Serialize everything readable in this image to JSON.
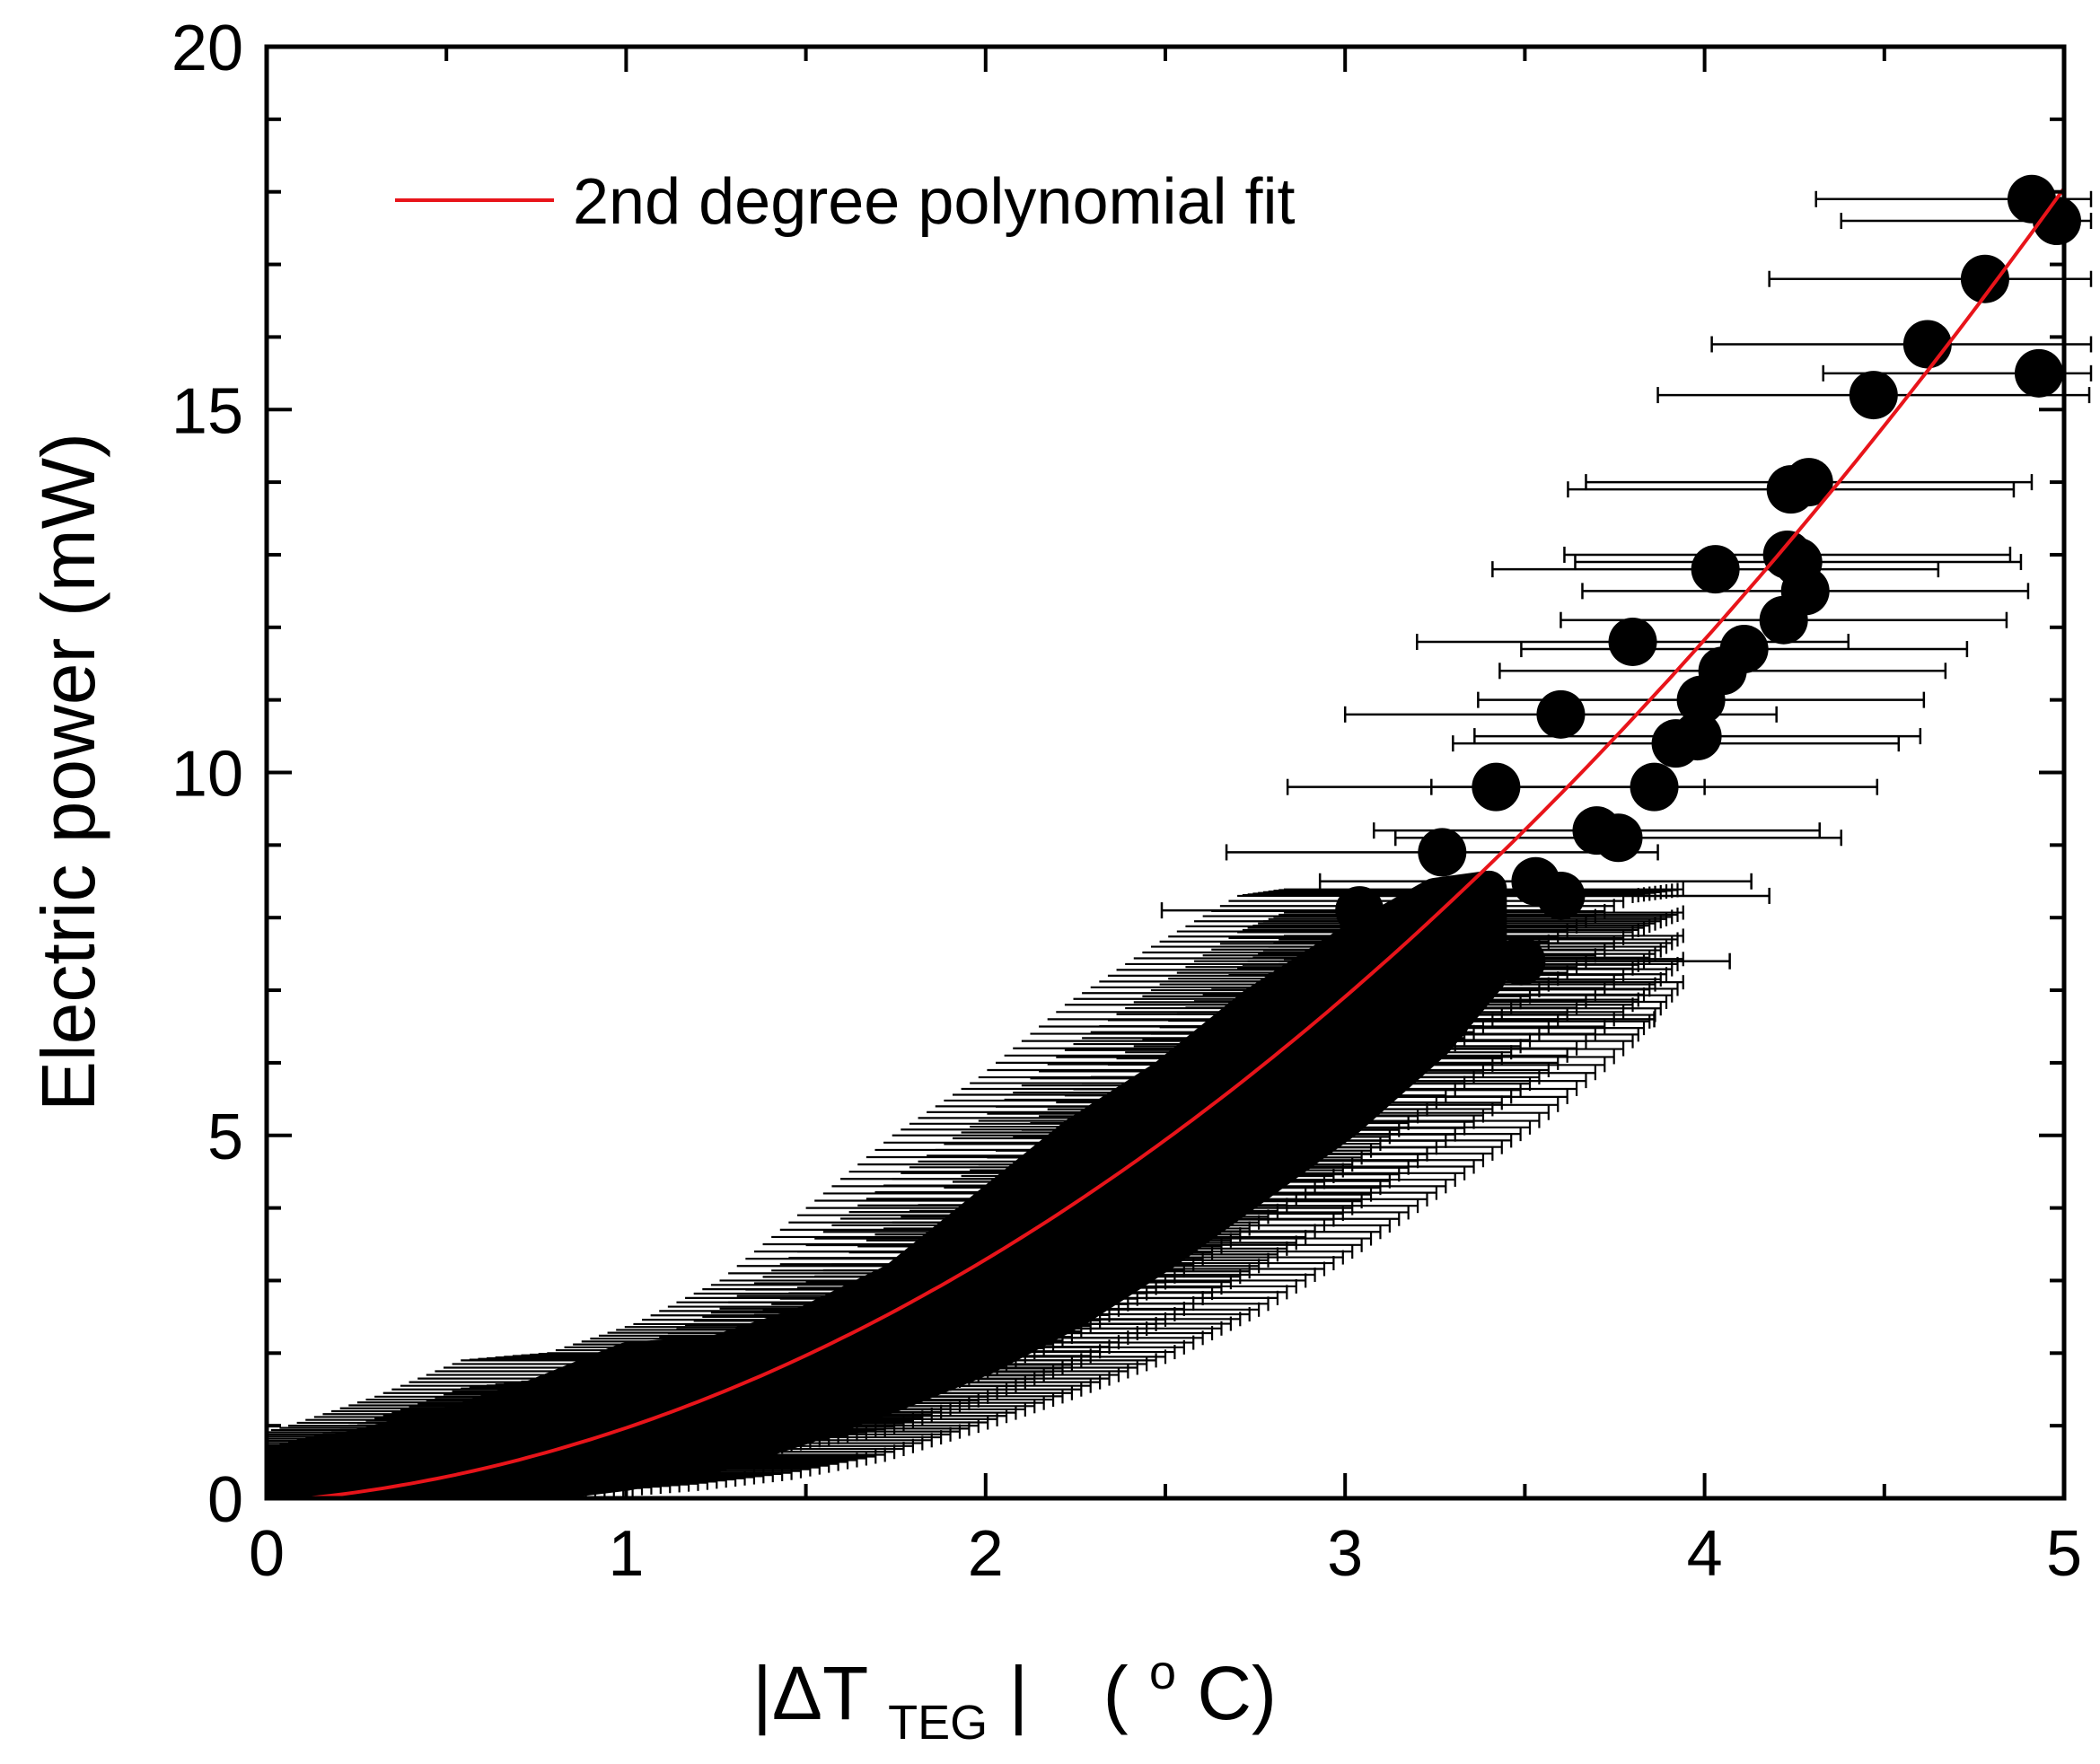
{
  "chart_data": {
    "type": "scatter",
    "title": "",
    "xlabel": {
      "parts": [
        "|ΔT",
        "TEG",
        "|",
        "(",
        "o",
        "C)"
      ]
    },
    "ylabel": "Electric power (mW)",
    "xlim": [
      0,
      5
    ],
    "ylim": [
      0,
      20
    ],
    "x_ticks": [
      0,
      1,
      2,
      3,
      4,
      5
    ],
    "y_ticks": [
      0,
      5,
      10,
      15,
      20
    ],
    "x_tick_labels": [
      "0",
      "1",
      "2",
      "3",
      "4",
      "5"
    ],
    "y_tick_labels": [
      "0",
      "5",
      "10",
      "15",
      "20"
    ],
    "grid": false,
    "legend": {
      "position": "top-left",
      "entries": [
        {
          "label": "2nd degree polynomial fit",
          "color": "#e8141a"
        }
      ]
    },
    "fit": {
      "type": "polynomial",
      "degree": 2,
      "coefficients": {
        "a": 0.65,
        "b": 0.37,
        "c": -0.05
      },
      "x_range": [
        0,
        5
      ],
      "color": "#e8141a"
    },
    "marker_color": "#000000",
    "band_envelope": [
      {
        "x": 0.0,
        "low": 0.0,
        "high": 0.45
      },
      {
        "x": 0.25,
        "low": 0.05,
        "high": 0.7
      },
      {
        "x": 0.5,
        "low": 0.1,
        "high": 1.0
      },
      {
        "x": 0.75,
        "low": 0.2,
        "high": 1.4
      },
      {
        "x": 1.0,
        "low": 0.35,
        "high": 1.9
      },
      {
        "x": 1.25,
        "low": 0.6,
        "high": 2.0
      },
      {
        "x": 1.5,
        "low": 1.0,
        "high": 2.4
      },
      {
        "x": 1.75,
        "low": 1.45,
        "high": 3.0
      },
      {
        "x": 2.0,
        "low": 1.95,
        "high": 4.0
      },
      {
        "x": 2.25,
        "low": 2.6,
        "high": 5.0
      },
      {
        "x": 2.5,
        "low": 3.4,
        "high": 5.8
      },
      {
        "x": 2.75,
        "low": 4.3,
        "high": 6.8
      },
      {
        "x": 3.0,
        "low": 5.2,
        "high": 7.6
      },
      {
        "x": 3.25,
        "low": 6.3,
        "high": 8.3
      },
      {
        "x": 3.4,
        "low": 7.2,
        "high": 8.4
      }
    ],
    "points": [
      {
        "x": 3.04,
        "y": 8.1,
        "xerr": 0.55
      },
      {
        "x": 3.27,
        "y": 8.9,
        "xerr": 0.6
      },
      {
        "x": 3.28,
        "y": 6.6,
        "xerr": 0.58
      },
      {
        "x": 3.42,
        "y": 9.8,
        "xerr": 0.58
      },
      {
        "x": 3.49,
        "y": 7.4,
        "xerr": 0.58
      },
      {
        "x": 3.53,
        "y": 8.5,
        "xerr": 0.6
      },
      {
        "x": 3.6,
        "y": 8.3,
        "xerr": 0.58
      },
      {
        "x": 3.6,
        "y": 10.8,
        "xerr": 0.6
      },
      {
        "x": 3.7,
        "y": 9.2,
        "xerr": 0.62
      },
      {
        "x": 3.76,
        "y": 9.1,
        "xerr": 0.62
      },
      {
        "x": 3.8,
        "y": 11.8,
        "xerr": 0.6
      },
      {
        "x": 3.86,
        "y": 9.8,
        "xerr": 0.62
      },
      {
        "x": 3.92,
        "y": 10.4,
        "xerr": 0.62
      },
      {
        "x": 3.98,
        "y": 10.5,
        "xerr": 0.62
      },
      {
        "x": 3.99,
        "y": 11.0,
        "xerr": 0.62
      },
      {
        "x": 4.03,
        "y": 12.8,
        "xerr": 0.62
      },
      {
        "x": 4.05,
        "y": 11.4,
        "xerr": 0.62
      },
      {
        "x": 4.11,
        "y": 11.7,
        "xerr": 0.62
      },
      {
        "x": 4.22,
        "y": 12.1,
        "xerr": 0.62
      },
      {
        "x": 4.23,
        "y": 13.0,
        "xerr": 0.62
      },
      {
        "x": 4.24,
        "y": 13.9,
        "xerr": 0.62
      },
      {
        "x": 4.26,
        "y": 12.9,
        "xerr": 0.62
      },
      {
        "x": 4.28,
        "y": 12.5,
        "xerr": 0.62
      },
      {
        "x": 4.29,
        "y": 14.0,
        "xerr": 0.62
      },
      {
        "x": 4.47,
        "y": 15.2,
        "xerr": 0.6
      },
      {
        "x": 4.62,
        "y": 15.9,
        "xerr": 0.6
      },
      {
        "x": 4.78,
        "y": 16.8,
        "xerr": 0.6
      },
      {
        "x": 4.91,
        "y": 17.9,
        "xerr": 0.6
      },
      {
        "x": 4.93,
        "y": 15.5,
        "xerr": 0.6
      },
      {
        "x": 4.98,
        "y": 17.6,
        "xerr": 0.6
      }
    ]
  }
}
